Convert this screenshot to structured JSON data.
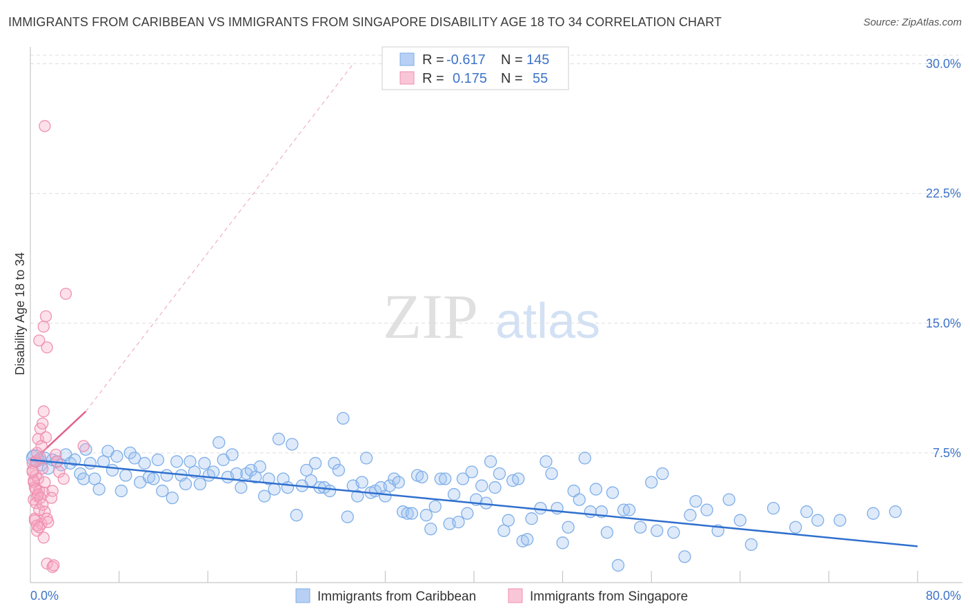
{
  "title": "IMMIGRANTS FROM CARIBBEAN VS IMMIGRANTS FROM SINGAPORE DISABILITY AGE 18 TO 34 CORRELATION CHART",
  "source": "Source: ZipAtlas.com",
  "watermark": {
    "zip": "ZIP",
    "atlas": "atlas"
  },
  "colors": {
    "blue": "#7eaee8",
    "blue_fill": "rgba(160,195,240,0.35)",
    "blue_line": "#2f6fce",
    "pink": "#ef8fb0",
    "pink_fill": "rgba(245,170,195,0.35)",
    "pink_line": "#e0628c",
    "axis_text": "#3d73c8",
    "grid": "#dddddd"
  },
  "legend": {
    "r_label": "R =",
    "n_label": "N =",
    "rows": [
      {
        "r": "-0.617",
        "n": "145",
        "color": "blue"
      },
      {
        "r": "0.175",
        "n": "55",
        "color": "pink"
      }
    ]
  },
  "bottom_legend": [
    "Immigrants from Caribbean",
    "Immigrants from Singapore"
  ],
  "chart_data": {
    "type": "scatter",
    "title": "IMMIGRANTS FROM CARIBBEAN VS IMMIGRANTS FROM SINGAPORE DISABILITY AGE 18 TO 34 CORRELATION CHART",
    "xlabel": "",
    "ylabel": "Disability Age 18 to 34",
    "xlim": [
      0,
      80
    ],
    "ylim": [
      0,
      30.5
    ],
    "x_tick_labels": [
      "0.0%",
      "80.0%"
    ],
    "y_ticks": [
      7.5,
      15.0,
      22.5,
      30.0
    ],
    "y_tick_labels": [
      "7.5%",
      "15.0%",
      "22.5%",
      "30.0%"
    ],
    "grid": true,
    "legend_position": "top-center",
    "series": [
      {
        "name": "Immigrants from Caribbean",
        "color": "blue",
        "r": -0.617,
        "n": 145,
        "trend": {
          "x": [
            0,
            80
          ],
          "y": [
            7.1,
            2.1
          ],
          "style": "solid"
        },
        "points": [
          [
            0.3,
            7.3
          ],
          [
            0.5,
            7.0
          ],
          [
            0.8,
            7.1
          ],
          [
            1.0,
            6.8
          ],
          [
            1.3,
            7.2
          ],
          [
            1.6,
            6.6
          ],
          [
            2.0,
            7.1
          ],
          [
            2.4,
            7.0
          ],
          [
            2.8,
            6.8
          ],
          [
            3.2,
            7.4
          ],
          [
            3.6,
            6.9
          ],
          [
            4.0,
            7.1
          ],
          [
            4.5,
            6.3
          ],
          [
            5.0,
            7.7
          ],
          [
            5.4,
            6.9
          ],
          [
            4.8,
            6.0
          ],
          [
            5.8,
            6.0
          ],
          [
            6.2,
            5.4
          ],
          [
            6.6,
            7.0
          ],
          [
            7.0,
            7.6
          ],
          [
            7.4,
            6.5
          ],
          [
            7.8,
            7.3
          ],
          [
            8.2,
            5.3
          ],
          [
            8.6,
            6.2
          ],
          [
            9.0,
            7.5
          ],
          [
            9.4,
            7.2
          ],
          [
            9.9,
            5.8
          ],
          [
            10.3,
            6.9
          ],
          [
            10.7,
            6.1
          ],
          [
            11.1,
            6.0
          ],
          [
            11.5,
            7.1
          ],
          [
            11.9,
            5.3
          ],
          [
            12.3,
            6.2
          ],
          [
            12.8,
            4.9
          ],
          [
            13.2,
            7.0
          ],
          [
            13.6,
            6.2
          ],
          [
            14.0,
            5.7
          ],
          [
            14.4,
            7.0
          ],
          [
            14.8,
            6.4
          ],
          [
            15.3,
            5.7
          ],
          [
            15.7,
            6.9
          ],
          [
            16.1,
            6.2
          ],
          [
            16.5,
            6.4
          ],
          [
            17.0,
            8.1
          ],
          [
            17.4,
            7.1
          ],
          [
            17.8,
            6.1
          ],
          [
            18.2,
            7.4
          ],
          [
            18.6,
            6.3
          ],
          [
            19.0,
            5.5
          ],
          [
            19.5,
            6.3
          ],
          [
            19.9,
            6.5
          ],
          [
            20.3,
            6.1
          ],
          [
            20.7,
            6.7
          ],
          [
            21.1,
            5.0
          ],
          [
            21.5,
            6.0
          ],
          [
            22.0,
            5.4
          ],
          [
            22.4,
            8.3
          ],
          [
            22.8,
            6.0
          ],
          [
            23.2,
            5.5
          ],
          [
            23.6,
            8.0
          ],
          [
            24.0,
            3.9
          ],
          [
            24.5,
            5.6
          ],
          [
            24.9,
            6.5
          ],
          [
            25.3,
            5.9
          ],
          [
            25.7,
            6.9
          ],
          [
            26.1,
            5.5
          ],
          [
            26.5,
            5.5
          ],
          [
            27.0,
            5.3
          ],
          [
            27.4,
            6.9
          ],
          [
            27.8,
            6.5
          ],
          [
            28.2,
            9.5
          ],
          [
            28.6,
            3.8
          ],
          [
            29.1,
            5.6
          ],
          [
            29.5,
            5.0
          ],
          [
            29.9,
            5.8
          ],
          [
            30.3,
            7.2
          ],
          [
            30.7,
            5.2
          ],
          [
            31.1,
            5.3
          ],
          [
            31.6,
            5.5
          ],
          [
            32.0,
            5.0
          ],
          [
            32.4,
            5.6
          ],
          [
            32.8,
            6.0
          ],
          [
            33.2,
            5.8
          ],
          [
            33.6,
            4.1
          ],
          [
            34.0,
            4.0
          ],
          [
            34.4,
            4.0
          ],
          [
            34.9,
            6.2
          ],
          [
            35.3,
            6.1
          ],
          [
            35.7,
            3.9
          ],
          [
            36.1,
            3.1
          ],
          [
            36.5,
            4.4
          ],
          [
            37.0,
            6.0
          ],
          [
            37.4,
            6.0
          ],
          [
            37.8,
            3.4
          ],
          [
            38.2,
            5.1
          ],
          [
            38.6,
            3.5
          ],
          [
            39.0,
            6.0
          ],
          [
            39.4,
            4.0
          ],
          [
            39.8,
            6.4
          ],
          [
            40.2,
            4.8
          ],
          [
            40.7,
            5.6
          ],
          [
            41.1,
            4.6
          ],
          [
            41.5,
            7.0
          ],
          [
            41.9,
            5.5
          ],
          [
            42.3,
            6.3
          ],
          [
            42.7,
            3.0
          ],
          [
            43.1,
            3.6
          ],
          [
            43.5,
            5.9
          ],
          [
            44.0,
            6.0
          ],
          [
            44.4,
            2.4
          ],
          [
            44.8,
            2.5
          ],
          [
            45.2,
            3.7
          ],
          [
            46.0,
            4.3
          ],
          [
            46.5,
            7.0
          ],
          [
            47.0,
            6.3
          ],
          [
            47.5,
            4.3
          ],
          [
            48.0,
            2.3
          ],
          [
            48.5,
            3.2
          ],
          [
            49.0,
            5.3
          ],
          [
            49.5,
            4.8
          ],
          [
            50.0,
            7.2
          ],
          [
            50.5,
            4.1
          ],
          [
            51.0,
            5.4
          ],
          [
            51.5,
            4.1
          ],
          [
            52.0,
            2.9
          ],
          [
            52.5,
            5.2
          ],
          [
            53.0,
            1.0
          ],
          [
            53.5,
            4.2
          ],
          [
            54.0,
            4.2
          ],
          [
            55.0,
            3.2
          ],
          [
            56.0,
            5.8
          ],
          [
            56.5,
            3.0
          ],
          [
            57.0,
            6.3
          ],
          [
            58.0,
            2.9
          ],
          [
            59.0,
            1.5
          ],
          [
            59.5,
            3.9
          ],
          [
            60.0,
            4.7
          ],
          [
            61.0,
            4.2
          ],
          [
            62.0,
            3.0
          ],
          [
            63.0,
            4.8
          ],
          [
            64.0,
            3.6
          ],
          [
            65.0,
            2.2
          ],
          [
            67.0,
            4.3
          ],
          [
            69.0,
            3.2
          ],
          [
            70.0,
            4.1
          ],
          [
            71.0,
            3.6
          ],
          [
            73.0,
            3.6
          ],
          [
            76.0,
            4.0
          ],
          [
            78.0,
            4.1
          ],
          [
            81.0,
            5.0
          ]
        ]
      },
      {
        "name": "Immigrants from Singapore",
        "color": "pink",
        "r": 0.175,
        "n": 55,
        "trend": {
          "x": [
            0,
            5
          ],
          "y": [
            6.9,
            9.9
          ],
          "style": "solid",
          "extended": {
            "x": [
              5,
              29
            ],
            "y": [
              9.9,
              29.9
            ],
            "style": "dashed"
          }
        },
        "points": [
          [
            0.2,
            6.9
          ],
          [
            0.3,
            5.8
          ],
          [
            0.4,
            5.5
          ],
          [
            0.5,
            6.2
          ],
          [
            0.6,
            5.0
          ],
          [
            0.3,
            4.8
          ],
          [
            0.5,
            4.6
          ],
          [
            0.7,
            6.0
          ],
          [
            0.8,
            5.3
          ],
          [
            0.2,
            6.5
          ],
          [
            0.4,
            3.7
          ],
          [
            0.6,
            3.0
          ],
          [
            0.8,
            4.2
          ],
          [
            1.0,
            3.4
          ],
          [
            1.2,
            5.2
          ],
          [
            0.5,
            7.0
          ],
          [
            0.9,
            7.2
          ],
          [
            1.1,
            6.6
          ],
          [
            1.3,
            5.8
          ],
          [
            0.7,
            8.3
          ],
          [
            0.9,
            8.9
          ],
          [
            1.1,
            9.2
          ],
          [
            1.2,
            9.9
          ],
          [
            0.6,
            7.5
          ],
          [
            1.0,
            7.9
          ],
          [
            1.4,
            8.4
          ],
          [
            0.3,
            5.9
          ],
          [
            0.5,
            5.4
          ],
          [
            0.7,
            5.1
          ],
          [
            0.9,
            4.9
          ],
          [
            1.1,
            4.5
          ],
          [
            1.3,
            4.1
          ],
          [
            1.5,
            3.7
          ],
          [
            0.4,
            3.6
          ],
          [
            0.6,
            3.3
          ],
          [
            0.8,
            3.2
          ],
          [
            1.2,
            2.6
          ],
          [
            1.6,
            3.5
          ],
          [
            0.8,
            14.0
          ],
          [
            1.2,
            14.8
          ],
          [
            1.4,
            15.4
          ],
          [
            1.5,
            13.6
          ],
          [
            1.3,
            26.4
          ],
          [
            2.3,
            7.4
          ],
          [
            2.6,
            6.4
          ],
          [
            3.0,
            6.0
          ],
          [
            3.2,
            16.7
          ],
          [
            2.4,
            7.0
          ],
          [
            2.0,
            5.3
          ],
          [
            1.9,
            4.9
          ],
          [
            1.5,
            1.1
          ],
          [
            2.0,
            0.9
          ],
          [
            2.1,
            1.0
          ],
          [
            4.8,
            7.9
          ],
          [
            0.2,
            6.4
          ]
        ]
      }
    ]
  }
}
